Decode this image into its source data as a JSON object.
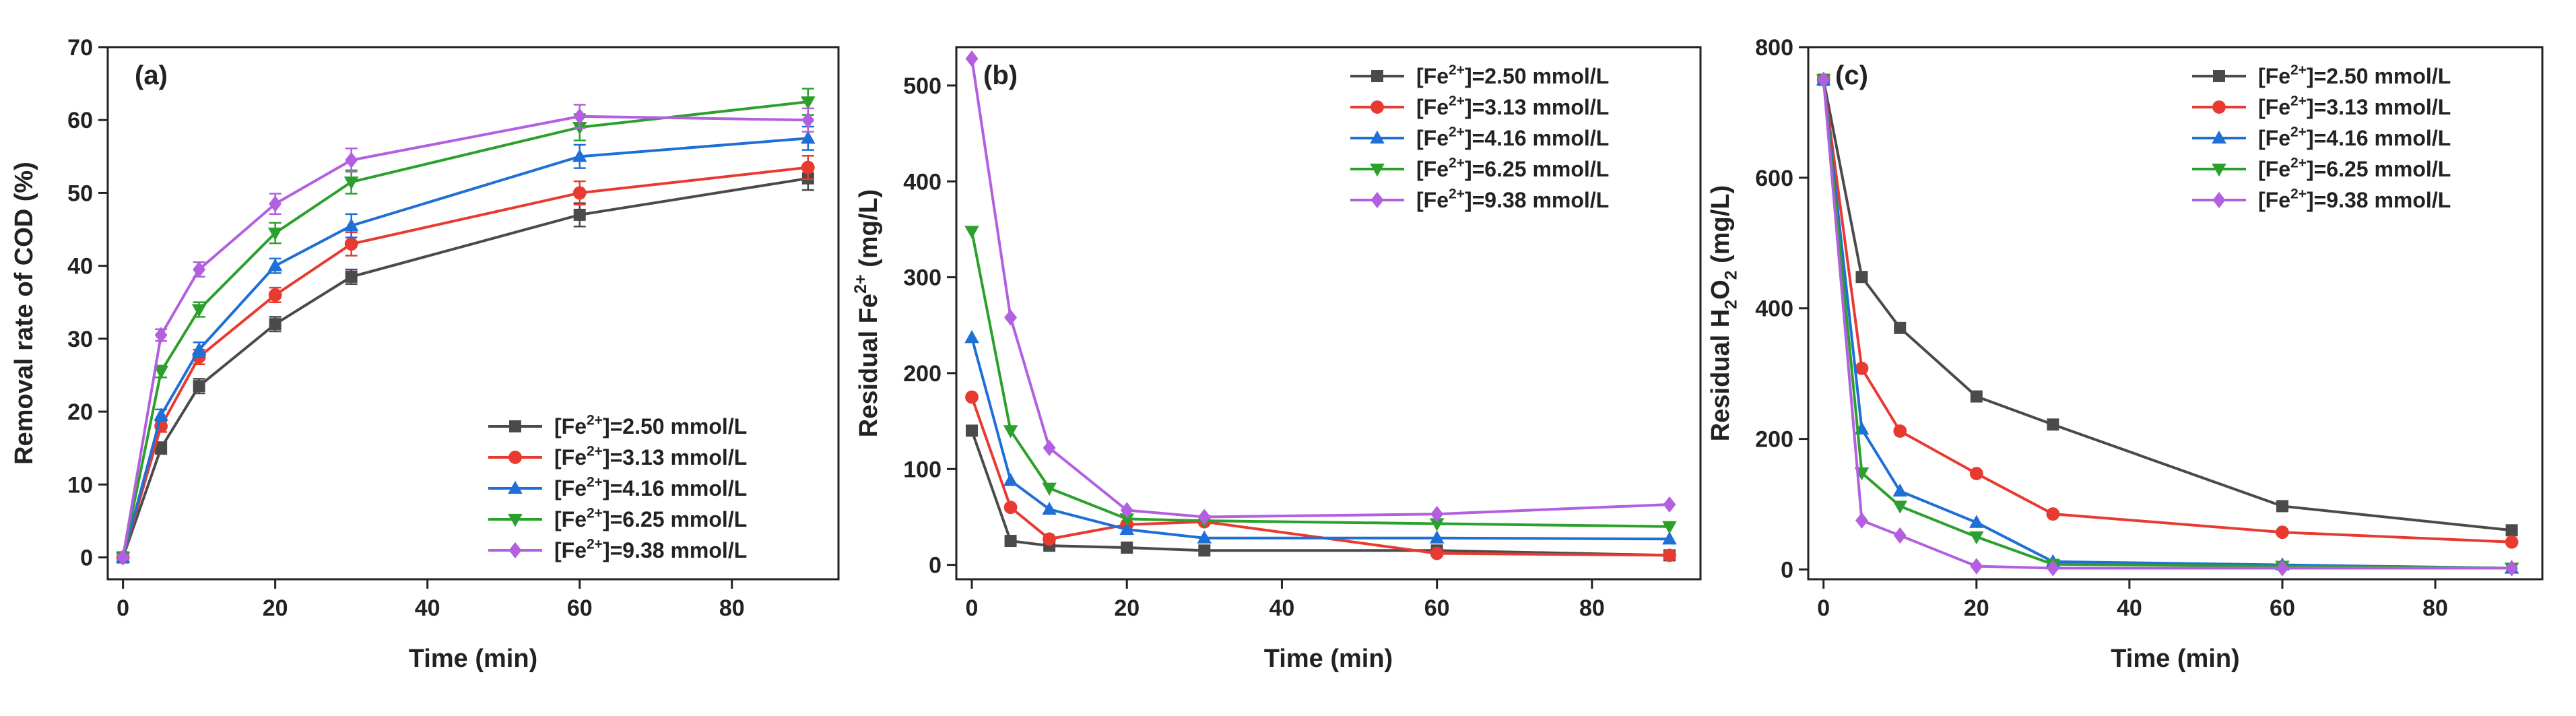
{
  "chart_data": [
    {
      "type": "line",
      "panel_label": "(a)",
      "xlabel": "Time (min)",
      "ylabel": "Removal rate of COD (%)",
      "xlim": [
        -2,
        94
      ],
      "ylim": [
        -3,
        70
      ],
      "xticks": [
        "0",
        "20",
        "40",
        "60",
        "80"
      ],
      "yticks": [
        "0",
        "10",
        "20",
        "30",
        "40",
        "50",
        "60",
        "70"
      ],
      "legend_position": "bottom-right",
      "error_bars": true,
      "x": [
        0,
        5,
        10,
        20,
        30,
        60,
        90
      ],
      "series": [
        {
          "name": "[Fe2+]=2.50 mmol/L",
          "values": [
            0,
            15,
            23.5,
            32,
            38.5,
            47,
            52
          ],
          "err": [
            0.3,
            0.8,
            1.0,
            1.0,
            1.0,
            1.6,
            1.6
          ],
          "color": "#4a4a4a",
          "marker": "square"
        },
        {
          "name": "[Fe2+]=3.13 mmol/L",
          "values": [
            0,
            18,
            27.5,
            36,
            43,
            50,
            53.5
          ],
          "err": [
            0.3,
            0.8,
            1.0,
            1.0,
            1.6,
            1.6,
            1.6
          ],
          "color": "#e83a30",
          "marker": "circle"
        },
        {
          "name": "[Fe2+]=4.16 mmol/L",
          "values": [
            0,
            19.5,
            28.5,
            40,
            45.5,
            55,
            57.5
          ],
          "err": [
            0.3,
            0.8,
            1.0,
            1.0,
            1.6,
            1.6,
            1.6
          ],
          "color": "#1e6fd6",
          "marker": "triangle-up"
        },
        {
          "name": "[Fe2+]=6.25 mmol/L",
          "values": [
            0,
            25.5,
            34,
            44.5,
            51.5,
            59,
            62.5
          ],
          "err": [
            0.3,
            0.8,
            1.0,
            1.4,
            1.6,
            1.8,
            1.8
          ],
          "color": "#2ca02c",
          "marker": "triangle-down"
        },
        {
          "name": "[Fe2+]=9.38 mmol/L",
          "values": [
            0,
            30.5,
            39.5,
            48.5,
            54.5,
            60.5,
            60
          ],
          "err": [
            0.3,
            0.8,
            1.0,
            1.4,
            1.6,
            1.6,
            1.6
          ],
          "color": "#b25fe0",
          "marker": "diamond"
        }
      ]
    },
    {
      "type": "line",
      "panel_label": "(b)",
      "xlabel": "Time (min)",
      "ylabel": "Residual Fe2+ (mg/L)",
      "xlim": [
        -2,
        94
      ],
      "ylim": [
        -15,
        540
      ],
      "xticks": [
        "0",
        "20",
        "40",
        "60",
        "80"
      ],
      "yticks": [
        "0",
        "100",
        "200",
        "300",
        "400",
        "500"
      ],
      "legend_position": "top-right",
      "error_bars": false,
      "x": [
        0,
        5,
        10,
        20,
        30,
        60,
        90
      ],
      "series": [
        {
          "name": "[Fe2+]=2.50 mmol/L",
          "values": [
            140,
            25,
            20,
            18,
            15,
            15,
            10
          ],
          "color": "#4a4a4a",
          "marker": "square"
        },
        {
          "name": "[Fe2+]=3.13 mmol/L",
          "values": [
            175,
            60,
            27,
            42,
            45,
            12,
            10
          ],
          "color": "#e83a30",
          "marker": "circle"
        },
        {
          "name": "[Fe2+]=4.16 mmol/L",
          "values": [
            237,
            88,
            58,
            37,
            28,
            28,
            27
          ],
          "color": "#1e6fd6",
          "marker": "triangle-up"
        },
        {
          "name": "[Fe2+]=6.25 mmol/L",
          "values": [
            348,
            140,
            80,
            48,
            46,
            43,
            40
          ],
          "color": "#2ca02c",
          "marker": "triangle-down"
        },
        {
          "name": "[Fe2+]=9.38 mmol/L",
          "values": [
            528,
            258,
            122,
            57,
            50,
            53,
            63
          ],
          "color": "#b25fe0",
          "marker": "diamond"
        }
      ]
    },
    {
      "type": "line",
      "panel_label": "(c)",
      "xlabel": "Time (min)",
      "ylabel": "Residual H2O2 (mg/L)",
      "xlim": [
        -2,
        94
      ],
      "ylim": [
        -15,
        800
      ],
      "xticks": [
        "0",
        "20",
        "40",
        "60",
        "80"
      ],
      "yticks": [
        "0",
        "200",
        "400",
        "600",
        "800"
      ],
      "legend_position": "top-right",
      "error_bars": false,
      "x": [
        0,
        5,
        10,
        20,
        30,
        60,
        90
      ],
      "series": [
        {
          "name": "[Fe2+]=2.50 mmol/L",
          "values": [
            750,
            448,
            370,
            265,
            222,
            97,
            60
          ],
          "color": "#4a4a4a",
          "marker": "square"
        },
        {
          "name": "[Fe2+]=3.13 mmol/L",
          "values": [
            750,
            308,
            212,
            147,
            85,
            57,
            42
          ],
          "color": "#e83a30",
          "marker": "circle"
        },
        {
          "name": "[Fe2+]=4.16 mmol/L",
          "values": [
            750,
            215,
            120,
            72,
            12,
            7,
            2
          ],
          "color": "#1e6fd6",
          "marker": "triangle-up"
        },
        {
          "name": "[Fe2+]=6.25 mmol/L",
          "values": [
            750,
            148,
            97,
            50,
            8,
            5,
            2
          ],
          "color": "#2ca02c",
          "marker": "triangle-down"
        },
        {
          "name": "[Fe2+]=9.38 mmol/L",
          "values": [
            750,
            75,
            52,
            5,
            2,
            2,
            2
          ],
          "color": "#b25fe0",
          "marker": "diamond"
        }
      ]
    }
  ]
}
